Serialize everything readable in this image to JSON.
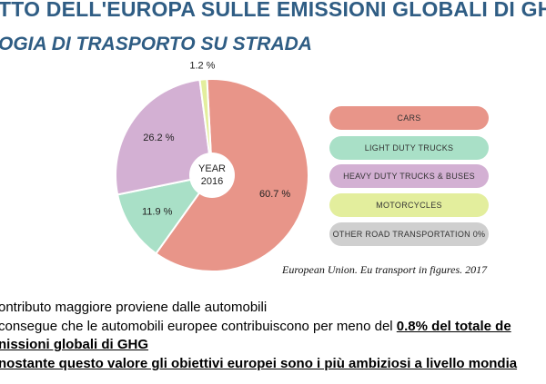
{
  "slide": {
    "title_line1": "TTO DELL'EUROPA SULLE EMISSIONI GLOBALI DI GHG",
    "title_line2": "OGIA DI TRASPORTO SU STRADA",
    "source": "European Union. Eu transport in figures. 2017",
    "bullets": {
      "line1": "ontributo maggiore proviene dalle automobili",
      "line2_pre": "consegue che le automobili europee contribuiscono per meno del ",
      "line2_highlight": "0.8% del totale de",
      "line3": "nissioni globali di GHG",
      "line4": "nostante questo valore gli obiettivi europei sono i più ambiziosi a livello mondia"
    }
  },
  "chart_data": {
    "type": "pie",
    "center_label": [
      "YEAR",
      "2016"
    ],
    "slices": [
      {
        "name": "CARS",
        "value": 60.7,
        "label": "60.7 %",
        "color": "#e89589"
      },
      {
        "name": "LIGHT DUTY TRUCKS",
        "value": 11.9,
        "label": "11.9 %",
        "color": "#a9e0c7"
      },
      {
        "name": "HEAVY DUTY TRUCKS & BUSES",
        "value": 26.2,
        "label": "26.2 %",
        "color": "#d3b0d3"
      },
      {
        "name": "MOTORCYCLES",
        "value": 1.2,
        "label": "1.2 %",
        "color": "#e3ee9d"
      },
      {
        "name": "OTHER ROAD TRANSPORTATION",
        "value": 0,
        "label": "",
        "color": "#cfcfcf"
      }
    ],
    "legend": [
      {
        "label": "CARS",
        "color": "#e89589"
      },
      {
        "label": "LIGHT DUTY TRUCKS",
        "color": "#a9e0c7"
      },
      {
        "label": "HEAVY DUTY TRUCKS & BUSES",
        "color": "#d3b0d3"
      },
      {
        "label": "MOTORCYCLES",
        "color": "#e3ee9d"
      },
      {
        "label": "OTHER ROAD TRANSPORTATION 0%",
        "color": "#cfcfcf"
      }
    ]
  }
}
